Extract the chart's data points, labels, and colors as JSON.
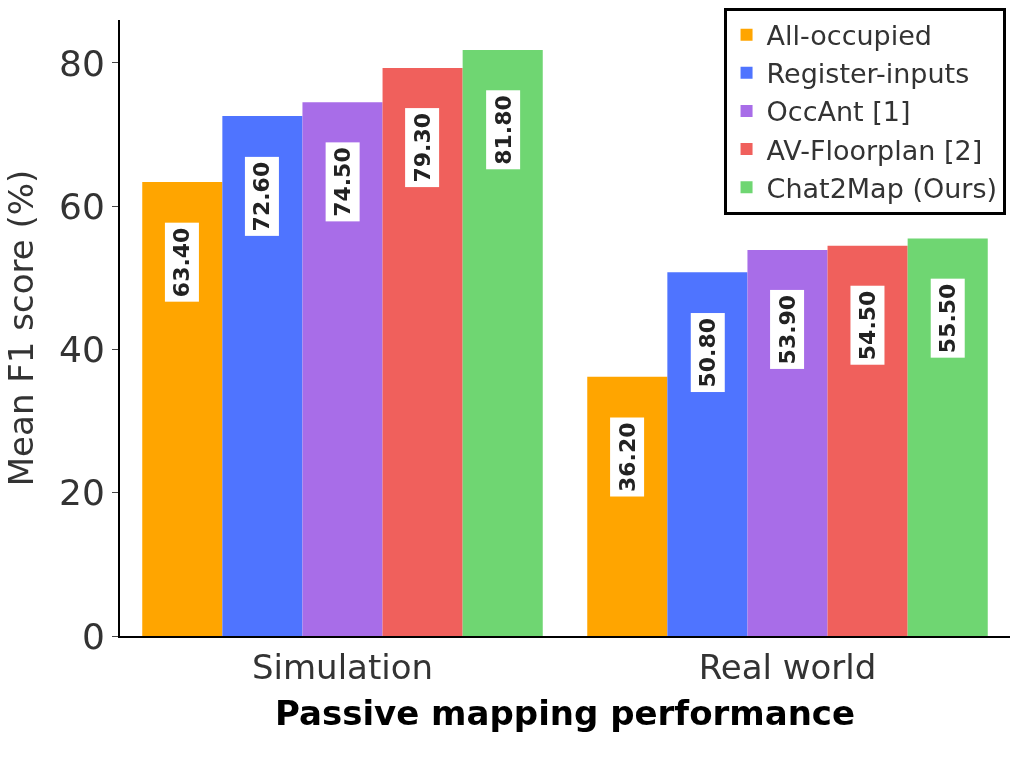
{
  "chart_data": {
    "type": "bar",
    "xlabel": "Passive mapping performance",
    "ylabel": "Mean F1 score (%)",
    "categories": [
      "Simulation",
      "Real world"
    ],
    "series": [
      {
        "name": "All-occupied",
        "color": "#ffa500",
        "values": [
          63.4,
          36.2
        ],
        "value_labels": [
          "63.40",
          "36.20"
        ]
      },
      {
        "name": "Register-inputs",
        "color": "#4f74ff",
        "values": [
          72.6,
          50.8
        ],
        "value_labels": [
          "72.60",
          "50.80"
        ]
      },
      {
        "name": "OccAnt [1]",
        "color": "#a86de8",
        "values": [
          74.5,
          53.9
        ],
        "value_labels": [
          "74.50",
          "53.90"
        ]
      },
      {
        "name": "AV-Floorplan [2]",
        "color": "#f0605c",
        "values": [
          79.3,
          54.5
        ],
        "value_labels": [
          "79.30",
          "54.50"
        ]
      },
      {
        "name": "Chat2Map (Ours)",
        "color": "#6fd672",
        "values": [
          81.8,
          55.5
        ],
        "value_labels": [
          "81.80",
          "55.50"
        ]
      }
    ],
    "ylim": [
      0,
      86
    ],
    "yticks": [
      0,
      20,
      40,
      60,
      80
    ],
    "legend": "top right"
  }
}
